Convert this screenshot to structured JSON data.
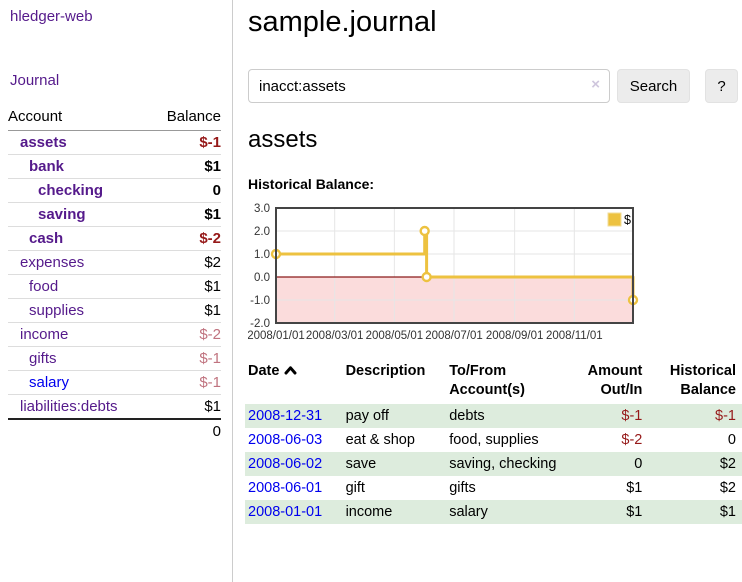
{
  "app": {
    "brand": "hledger-web",
    "nav_journal": "Journal"
  },
  "sidebar": {
    "headers": {
      "account": "Account",
      "balance": "Balance"
    },
    "accounts": [
      {
        "name": "assets",
        "balance": "$-1"
      },
      {
        "name": "bank",
        "balance": "$1"
      },
      {
        "name": "checking",
        "balance": "0"
      },
      {
        "name": "saving",
        "balance": "$1"
      },
      {
        "name": "cash",
        "balance": "$-2"
      },
      {
        "name": "expenses",
        "balance": "$2"
      },
      {
        "name": "food",
        "balance": "$1"
      },
      {
        "name": "supplies",
        "balance": "$1"
      },
      {
        "name": "income",
        "balance": "$-2"
      },
      {
        "name": "gifts",
        "balance": "$-1"
      },
      {
        "name": "salary",
        "balance": "$-1"
      },
      {
        "name": "liabilities:debts",
        "balance": "$1"
      }
    ],
    "total": "0"
  },
  "main": {
    "title": "sample.journal",
    "search": {
      "value": "inacct:assets",
      "clear_icon": "×",
      "search_label": "Search",
      "help_label": "?"
    },
    "account_heading": "assets",
    "chart_label": "Historical Balance:"
  },
  "chart_data": {
    "type": "line",
    "step": true,
    "title": "Historical Balance:",
    "series": [
      {
        "name": "$",
        "color": "#EDC240",
        "points": [
          [
            "2008-01-01",
            1
          ],
          [
            "2008-06-01",
            2
          ],
          [
            "2008-06-03",
            0
          ],
          [
            "2008-12-31",
            -1
          ]
        ]
      }
    ],
    "x_ticks": [
      "2008/01/01",
      "2008/03/01",
      "2008/05/01",
      "2008/07/01",
      "2008/09/01",
      "2008/11/01"
    ],
    "y_ticks": [
      "3.0",
      "2.0",
      "1.0",
      "0.0",
      "-1.0",
      "-2.0"
    ],
    "xlim": [
      "2008-01-01",
      "2008-12-31"
    ],
    "ylim": [
      -2,
      3
    ],
    "grid": true,
    "legend": [
      "$"
    ],
    "legend_position": "top-right",
    "line_color": "#EDC240",
    "negative_region_color": "#fbdcdc",
    "zero_line_color": "#8b1a1a"
  },
  "register": {
    "headers": {
      "date": "Date",
      "description": "Description",
      "tofrom": [
        "To/From",
        "Account(s)"
      ],
      "amount": [
        "Amount",
        "Out/In"
      ],
      "balance": [
        "Historical",
        "Balance"
      ]
    },
    "rows": [
      {
        "date": "2008-12-31",
        "description": "pay off",
        "accounts": "debts",
        "amount": "$-1",
        "balance": "$-1"
      },
      {
        "date": "2008-06-03",
        "description": "eat & shop",
        "accounts": "food, supplies",
        "amount": "$-2",
        "balance": "0"
      },
      {
        "date": "2008-06-02",
        "description": "save",
        "accounts": "saving, checking",
        "amount": "0",
        "balance": "$2"
      },
      {
        "date": "2008-06-01",
        "description": "gift",
        "accounts": "gifts",
        "amount": "$1",
        "balance": "$2"
      },
      {
        "date": "2008-01-01",
        "description": "income",
        "accounts": "salary",
        "amount": "$1",
        "balance": "$1"
      }
    ]
  }
}
